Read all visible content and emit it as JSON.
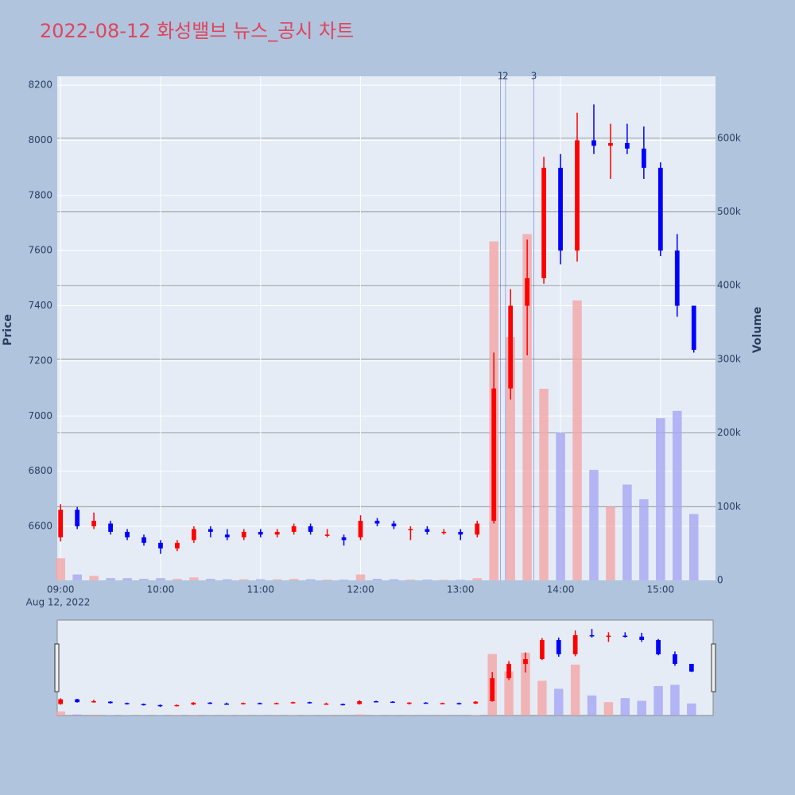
{
  "chart_data": {
    "type": "candlestick",
    "title": "2022-08-12 화성밸브 뉴스_공시 차트",
    "y_label": "Price",
    "y2_label": "Volume",
    "x_date_label": "Aug 12, 2022",
    "x": [
      "09:00",
      "09:10",
      "09:20",
      "09:30",
      "09:40",
      "09:50",
      "10:00",
      "10:10",
      "10:20",
      "10:30",
      "10:40",
      "10:50",
      "11:00",
      "11:10",
      "11:20",
      "11:30",
      "11:40",
      "11:50",
      "12:00",
      "12:10",
      "12:20",
      "12:30",
      "12:40",
      "12:50",
      "13:00",
      "13:10",
      "13:20",
      "13:30",
      "13:40",
      "13:50",
      "14:00",
      "14:10",
      "14:20",
      "14:30",
      "14:40",
      "14:50",
      "15:00",
      "15:10",
      "15:20"
    ],
    "open": [
      6560,
      6660,
      6600,
      6610,
      6580,
      6560,
      6540,
      6520,
      6550,
      6590,
      6570,
      6560,
      6580,
      6570,
      6580,
      6600,
      6570,
      6560,
      6560,
      6620,
      6610,
      6590,
      6590,
      6580,
      6580,
      6570,
      6620,
      7100,
      7400,
      7500,
      7900,
      7600,
      8000,
      7980,
      7990,
      7970,
      7900,
      7600,
      7400
    ],
    "high": [
      6680,
      6670,
      6650,
      6620,
      6590,
      6570,
      6550,
      6550,
      6600,
      6600,
      6590,
      6590,
      6590,
      6590,
      6610,
      6610,
      6590,
      6570,
      6640,
      6630,
      6620,
      6600,
      6600,
      6590,
      6590,
      6620,
      7230,
      7460,
      7640,
      7940,
      7950,
      8100,
      8130,
      8060,
      8060,
      8050,
      7920,
      7660,
      7400
    ],
    "low": [
      6545,
      6590,
      6590,
      6570,
      6550,
      6530,
      6500,
      6510,
      6540,
      6560,
      6550,
      6550,
      6560,
      6560,
      6570,
      6570,
      6560,
      6530,
      6550,
      6600,
      6590,
      6550,
      6570,
      6570,
      6550,
      6560,
      6610,
      7060,
      7220,
      7480,
      7550,
      7560,
      7950,
      7860,
      7950,
      7860,
      7580,
      7360,
      7230
    ],
    "close": [
      6660,
      6600,
      6620,
      6580,
      6560,
      6540,
      6520,
      6540,
      6590,
      6580,
      6560,
      6580,
      6570,
      6580,
      6600,
      6580,
      6570,
      6550,
      6620,
      6610,
      6600,
      6590,
      6580,
      6580,
      6570,
      6610,
      7100,
      7400,
      7500,
      7900,
      7600,
      8000,
      7980,
      7990,
      7970,
      7900,
      7600,
      7400,
      7240
    ],
    "volume": [
      30000,
      8000,
      6000,
      3000,
      3000,
      2000,
      3000,
      2000,
      4000,
      2000,
      1500,
      1500,
      1500,
      1500,
      2000,
      1500,
      1000,
      1000,
      8000,
      2000,
      1500,
      1000,
      1000,
      800,
      800,
      3000,
      460000,
      330000,
      470000,
      260000,
      200000,
      380000,
      150000,
      100000,
      130000,
      110000,
      220000,
      230000,
      90000
    ],
    "increasing_color": "#ff0000",
    "decreasing_color": "#0000ff",
    "increasing_volume_color": "#f4a6a6",
    "decreasing_volume_color": "#a6a6f4",
    "annotations": [
      {
        "x": "13:24",
        "text": "1"
      },
      {
        "x": "13:27",
        "text": "2"
      },
      {
        "x": "13:44",
        "text": "3"
      }
    ],
    "xlim": [
      "08:58",
      "15:33"
    ],
    "xticks": [
      "09:00",
      "10:00",
      "11:00",
      "12:00",
      "13:00",
      "14:00",
      "15:00"
    ],
    "ylim": [
      6404,
      8232
    ],
    "yticks": [
      6600,
      6800,
      7000,
      7200,
      7400,
      7600,
      7800,
      8000,
      8200
    ],
    "y2lim": [
      0,
      684000
    ],
    "y2ticks": [
      0,
      {
        "value": 100000,
        "label": "100k"
      },
      {
        "value": 200000,
        "label": "200k"
      },
      {
        "value": 300000,
        "label": "300k"
      },
      {
        "value": 400000,
        "label": "400k"
      },
      {
        "value": 500000,
        "label": "500k"
      },
      {
        "value": 600000,
        "label": "600k"
      }
    ],
    "grid": true,
    "rangeslider": true
  }
}
